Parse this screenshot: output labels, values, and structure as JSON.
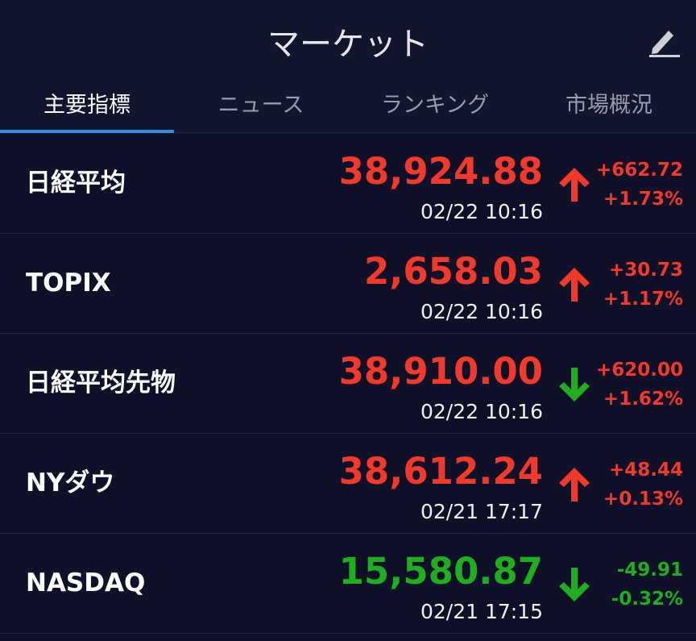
{
  "header": {
    "title": "マーケット"
  },
  "tabs": {
    "items": [
      "主要指標",
      "ニュース",
      "ランキング",
      "市場概況"
    ],
    "active": 0
  },
  "rows": [
    {
      "name": "日経平均",
      "price": "38,924.88",
      "time": "02/22 10:16",
      "change": "+662.72",
      "change_pct": "+1.73%",
      "color": "#f2392c",
      "arrow": "up",
      "arrow_color": "#f2392c"
    },
    {
      "name": "TOPIX",
      "price": "2,658.03",
      "time": "02/22 10:16",
      "change": "+30.73",
      "change_pct": "+1.17%",
      "color": "#f2392c",
      "arrow": "up",
      "arrow_color": "#f2392c"
    },
    {
      "name": "日経平均先物",
      "price": "38,910.00",
      "time": "02/22 10:16",
      "change": "+620.00",
      "change_pct": "+1.62%",
      "color": "#f2392c",
      "arrow": "down",
      "arrow_color": "#1fae1f"
    },
    {
      "name": "NYダウ",
      "price": "38,612.24",
      "time": "02/21 17:17",
      "change": "+48.44",
      "change_pct": "+0.13%",
      "color": "#f2392c",
      "arrow": "up",
      "arrow_color": "#f2392c"
    },
    {
      "name": "NASDAQ",
      "price": "15,580.87",
      "time": "02/21 17:15",
      "change": "-49.91",
      "change_pct": "-0.32%",
      "color": "#1fae1f",
      "arrow": "down",
      "arrow_color": "#1fae1f"
    }
  ]
}
